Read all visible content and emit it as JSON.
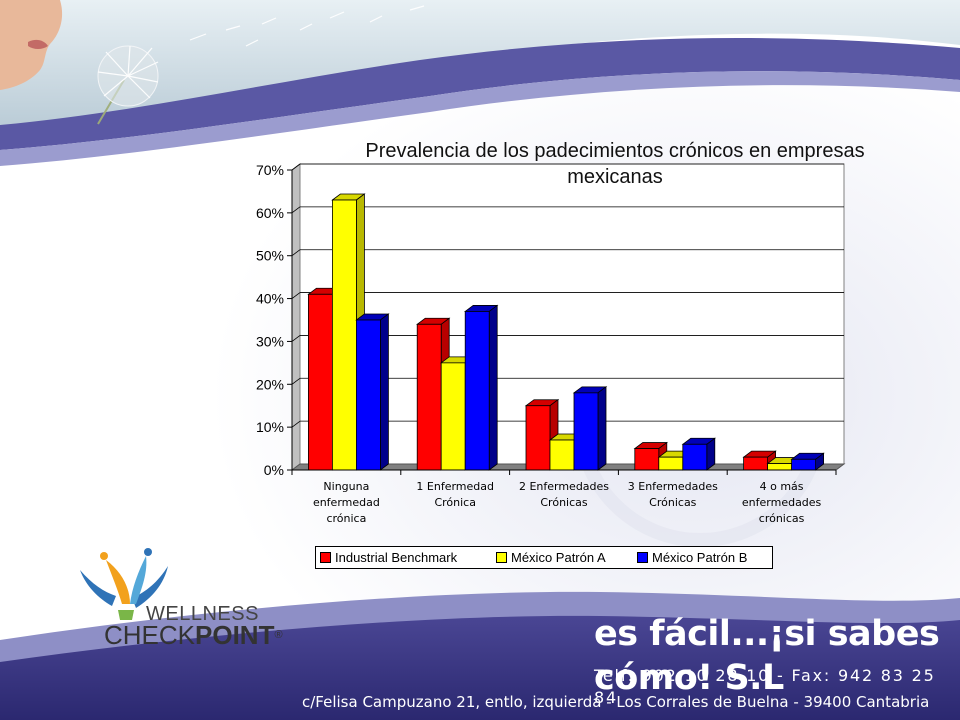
{
  "chart_data": {
    "type": "bar",
    "title": "Prevalencia de los padecimientos crónicos en empresas mexicanas",
    "categories": [
      [
        "Ninguna",
        "enfermedad",
        "crónica"
      ],
      [
        "1 Enfermedad",
        "Crónica"
      ],
      [
        "2 Enfermedades",
        "Crónicas"
      ],
      [
        "3 Enfermedades",
        "Crónicas"
      ],
      [
        "4 o más",
        "enfermedades",
        "crónicas"
      ]
    ],
    "series": [
      {
        "name": "Industrial Benchmark",
        "color": "#ff0000",
        "values": [
          41,
          34,
          15,
          5,
          3
        ]
      },
      {
        "name": "México Patrón A",
        "color": "#ffff00",
        "values": [
          63,
          25,
          7,
          3,
          1.5
        ]
      },
      {
        "name": "México Patrón B",
        "color": "#0000ff",
        "values": [
          35,
          37,
          18,
          6,
          2.5
        ]
      }
    ],
    "ylim": [
      0,
      70
    ],
    "yticks": [
      "0%",
      "10%",
      "20%",
      "30%",
      "40%",
      "50%",
      "60%",
      "70%"
    ],
    "grid": true,
    "legend_position": "bottom"
  },
  "footer": {
    "tagline": "es fácil...¡si sabes cómo! S.L",
    "phone": "Telf: 902 10 28 10 - Fax: 942 83 25 84",
    "address": "c/Felisa Campuzano 21, entlo, izquierda - Los Corrales de Buelna - 39400 Cantabria"
  },
  "logo": {
    "line1": "WELLNESS",
    "line2_part1": "CHECK",
    "line2_part2": "POINT",
    "mark": "®"
  },
  "colors": {
    "banner": "#34307e",
    "banner_light": "#6f6db1"
  }
}
